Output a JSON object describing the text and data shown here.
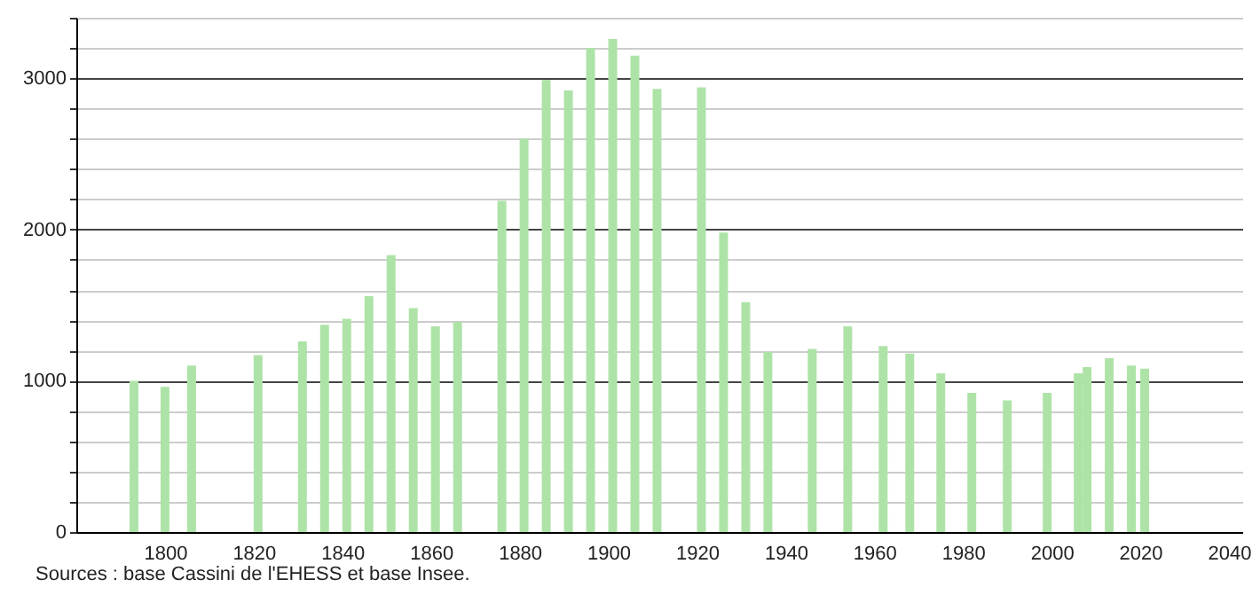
{
  "chart_data": {
    "type": "bar",
    "x": [
      1793,
      1800,
      1806,
      1821,
      1831,
      1836,
      1841,
      1846,
      1851,
      1856,
      1861,
      1866,
      1876,
      1881,
      1886,
      1891,
      1896,
      1901,
      1906,
      1911,
      1921,
      1926,
      1931,
      1936,
      1946,
      1954,
      1962,
      1968,
      1975,
      1982,
      1990,
      1999,
      2006,
      2008,
      2013,
      2018,
      2021
    ],
    "values": [
      1000,
      960,
      1100,
      1170,
      1260,
      1370,
      1410,
      1560,
      1830,
      1480,
      1360,
      1390,
      2190,
      2600,
      2990,
      2920,
      3200,
      3260,
      3150,
      2930,
      2940,
      1980,
      1520,
      1190,
      1210,
      1360,
      1230,
      1180,
      1050,
      920,
      870,
      920,
      1050,
      1090,
      1150,
      1100,
      1080
    ],
    "color": "#aee3a8",
    "xlim": [
      1780,
      2043
    ],
    "xticks": [
      1800,
      1820,
      1840,
      1860,
      1880,
      1900,
      1920,
      1940,
      1960,
      1980,
      2000,
      2020,
      2040
    ],
    "ylim": [
      0,
      3400
    ],
    "yticks": [
      0,
      {
        "value": 200,
        "label": null
      },
      {
        "value": 400,
        "label": null
      },
      {
        "value": 600,
        "label": null
      },
      {
        "value": 800,
        "label": null
      },
      1000,
      {
        "value": 1200,
        "label": null
      },
      {
        "value": 1400,
        "label": null
      },
      {
        "value": 1600,
        "label": null
      },
      {
        "value": 1800,
        "label": null
      },
      2000,
      {
        "value": 2200,
        "label": null
      },
      {
        "value": 2400,
        "label": null
      },
      {
        "value": 2600,
        "label": null
      },
      {
        "value": 2800,
        "label": null
      },
      3000,
      {
        "value": 3200,
        "label": null
      },
      {
        "value": 3400,
        "label": null
      }
    ],
    "grid": "y",
    "annotations": [
      "Sources : base Cassini de l'EHESS et base Insee."
    ]
  }
}
